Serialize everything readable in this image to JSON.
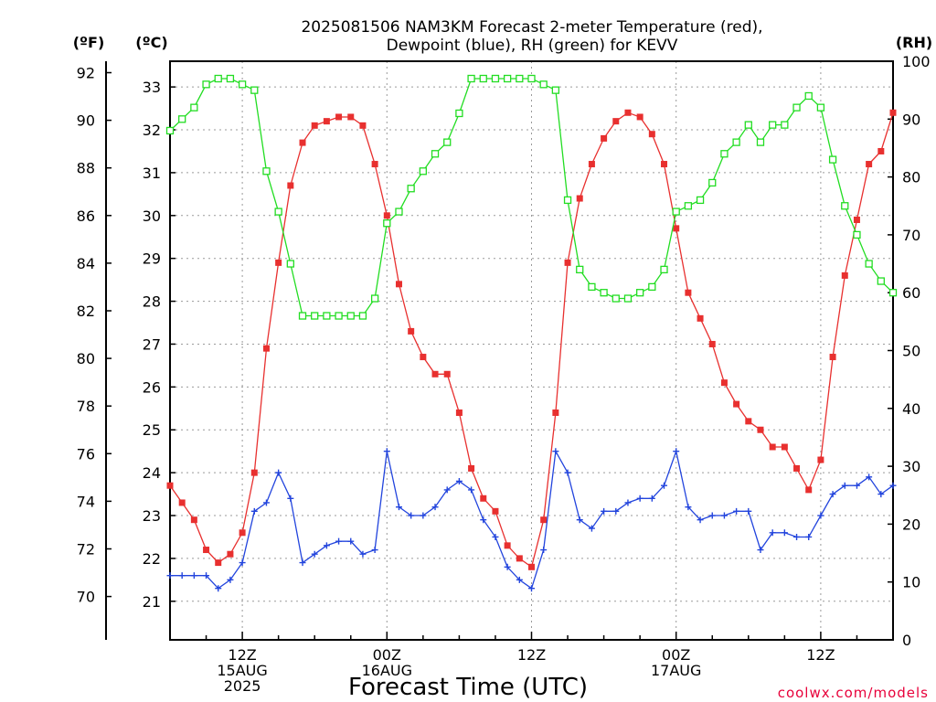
{
  "chart_data": {
    "type": "line",
    "title_line1": "2025081506 NAM3KM Forecast 2-meter Temperature (red),",
    "title_line2": "Dewpoint (blue), RH (green) for KEVV",
    "xlabel": "Forecast Time (UTC)",
    "credit": "coolwx.com/models",
    "units": {
      "fahrenheit": "(ºF)",
      "celsius": "(ºC)",
      "rh": "(RH)"
    },
    "x_range_hours": [
      6,
      66
    ],
    "left_axis_fahrenheit": {
      "ticks": [
        70,
        72,
        74,
        76,
        78,
        80,
        82,
        84,
        86,
        88,
        90,
        92
      ]
    },
    "left_axis_celsius": {
      "range": [
        20.1,
        33.6
      ],
      "ticks": [
        21,
        22,
        23,
        24,
        25,
        26,
        27,
        28,
        29,
        30,
        31,
        32,
        33
      ]
    },
    "right_axis_rh": {
      "range": [
        0,
        100
      ],
      "ticks": [
        0,
        10,
        20,
        30,
        40,
        50,
        60,
        70,
        80,
        90,
        100
      ]
    },
    "x_ticks": [
      {
        "hour": 12,
        "lines": [
          "12Z",
          "15AUG",
          "2025"
        ]
      },
      {
        "hour": 24,
        "lines": [
          "00Z",
          "16AUG"
        ]
      },
      {
        "hour": 36,
        "lines": [
          "12Z"
        ]
      },
      {
        "hour": 48,
        "lines": [
          "00Z",
          "17AUG"
        ]
      },
      {
        "hour": 60,
        "lines": [
          "12Z"
        ]
      }
    ],
    "series": [
      {
        "key": "temperature",
        "axis": "celsius",
        "color": "#e8302f",
        "marker": "filled-square",
        "x": [
          6,
          7,
          8,
          9,
          10,
          11,
          12,
          13,
          14,
          15,
          16,
          17,
          18,
          19,
          20,
          21,
          22,
          23,
          24,
          25,
          26,
          27,
          28,
          29,
          30,
          31,
          32,
          33,
          34,
          35,
          36,
          37,
          38,
          39,
          40,
          41,
          42,
          43,
          44,
          45,
          46,
          47,
          48,
          49,
          50,
          51,
          52,
          53,
          54,
          55,
          56,
          57,
          58,
          59,
          60,
          61,
          62,
          63,
          64,
          65,
          66
        ],
        "values": [
          23.7,
          23.3,
          22.9,
          22.2,
          21.9,
          22.1,
          22.6,
          24.0,
          26.9,
          28.9,
          30.7,
          31.7,
          32.1,
          32.2,
          32.3,
          32.3,
          32.1,
          31.2,
          30.0,
          28.4,
          27.3,
          26.7,
          26.3,
          26.3,
          25.4,
          24.1,
          23.4,
          23.1,
          22.3,
          22.0,
          21.8,
          22.9,
          25.4,
          28.9,
          30.4,
          31.2,
          31.8,
          32.2,
          32.4,
          32.3,
          31.9,
          31.2,
          29.7,
          28.2,
          27.6,
          27.0,
          26.1,
          25.6,
          25.2,
          25.0,
          24.6,
          24.6,
          24.1,
          23.6,
          24.3,
          26.7,
          28.6,
          29.9,
          31.2,
          31.5,
          32.4
        ]
      },
      {
        "key": "dewpoint",
        "axis": "celsius",
        "color": "#2244dd",
        "marker": "plus",
        "x": [
          6,
          7,
          8,
          9,
          10,
          11,
          12,
          13,
          14,
          15,
          16,
          17,
          18,
          19,
          20,
          21,
          22,
          23,
          24,
          25,
          26,
          27,
          28,
          29,
          30,
          31,
          32,
          33,
          34,
          35,
          36,
          37,
          38,
          39,
          40,
          41,
          42,
          43,
          44,
          45,
          46,
          47,
          48,
          49,
          50,
          51,
          52,
          53,
          54,
          55,
          56,
          57,
          58,
          59,
          60,
          61,
          62,
          63,
          64,
          65,
          66
        ],
        "values": [
          21.6,
          21.6,
          21.6,
          21.6,
          21.3,
          21.5,
          21.9,
          23.1,
          23.3,
          24.0,
          23.4,
          21.9,
          22.1,
          22.3,
          22.4,
          22.4,
          22.1,
          22.2,
          24.5,
          23.2,
          23.0,
          23.0,
          23.2,
          23.6,
          23.8,
          23.6,
          22.9,
          22.5,
          21.8,
          21.5,
          21.3,
          22.2,
          24.5,
          24.0,
          22.9,
          22.7,
          23.1,
          23.1,
          23.3,
          23.4,
          23.4,
          23.7,
          24.5,
          23.2,
          22.9,
          23.0,
          23.0,
          23.1,
          23.1,
          22.2,
          22.6,
          22.6,
          22.5,
          22.5,
          23.0,
          23.5,
          23.7,
          23.7,
          23.9,
          23.5,
          23.7
        ]
      },
      {
        "key": "rh",
        "axis": "rh",
        "color": "#22dd22",
        "marker": "open-square",
        "x": [
          6,
          7,
          8,
          9,
          10,
          11,
          12,
          13,
          14,
          15,
          16,
          17,
          18,
          19,
          20,
          21,
          22,
          23,
          24,
          25,
          26,
          27,
          28,
          29,
          30,
          31,
          32,
          33,
          34,
          35,
          36,
          37,
          38,
          39,
          40,
          41,
          42,
          43,
          44,
          45,
          46,
          47,
          48,
          49,
          50,
          51,
          52,
          53,
          54,
          55,
          56,
          57,
          58,
          59,
          60,
          61,
          62,
          63,
          64,
          65,
          66
        ],
        "values": [
          88,
          90,
          92,
          96,
          97,
          97,
          96,
          95,
          81,
          74,
          65,
          56,
          56,
          56,
          56,
          56,
          56,
          59,
          72,
          74,
          78,
          81,
          84,
          86,
          91,
          97,
          97,
          97,
          97,
          97,
          97,
          96,
          95,
          76,
          64,
          61,
          60,
          59,
          59,
          60,
          61,
          64,
          74,
          75,
          76,
          79,
          84,
          86,
          89,
          86,
          89,
          89,
          92,
          94,
          92,
          83,
          75,
          70,
          65,
          62,
          60
        ]
      }
    ]
  }
}
